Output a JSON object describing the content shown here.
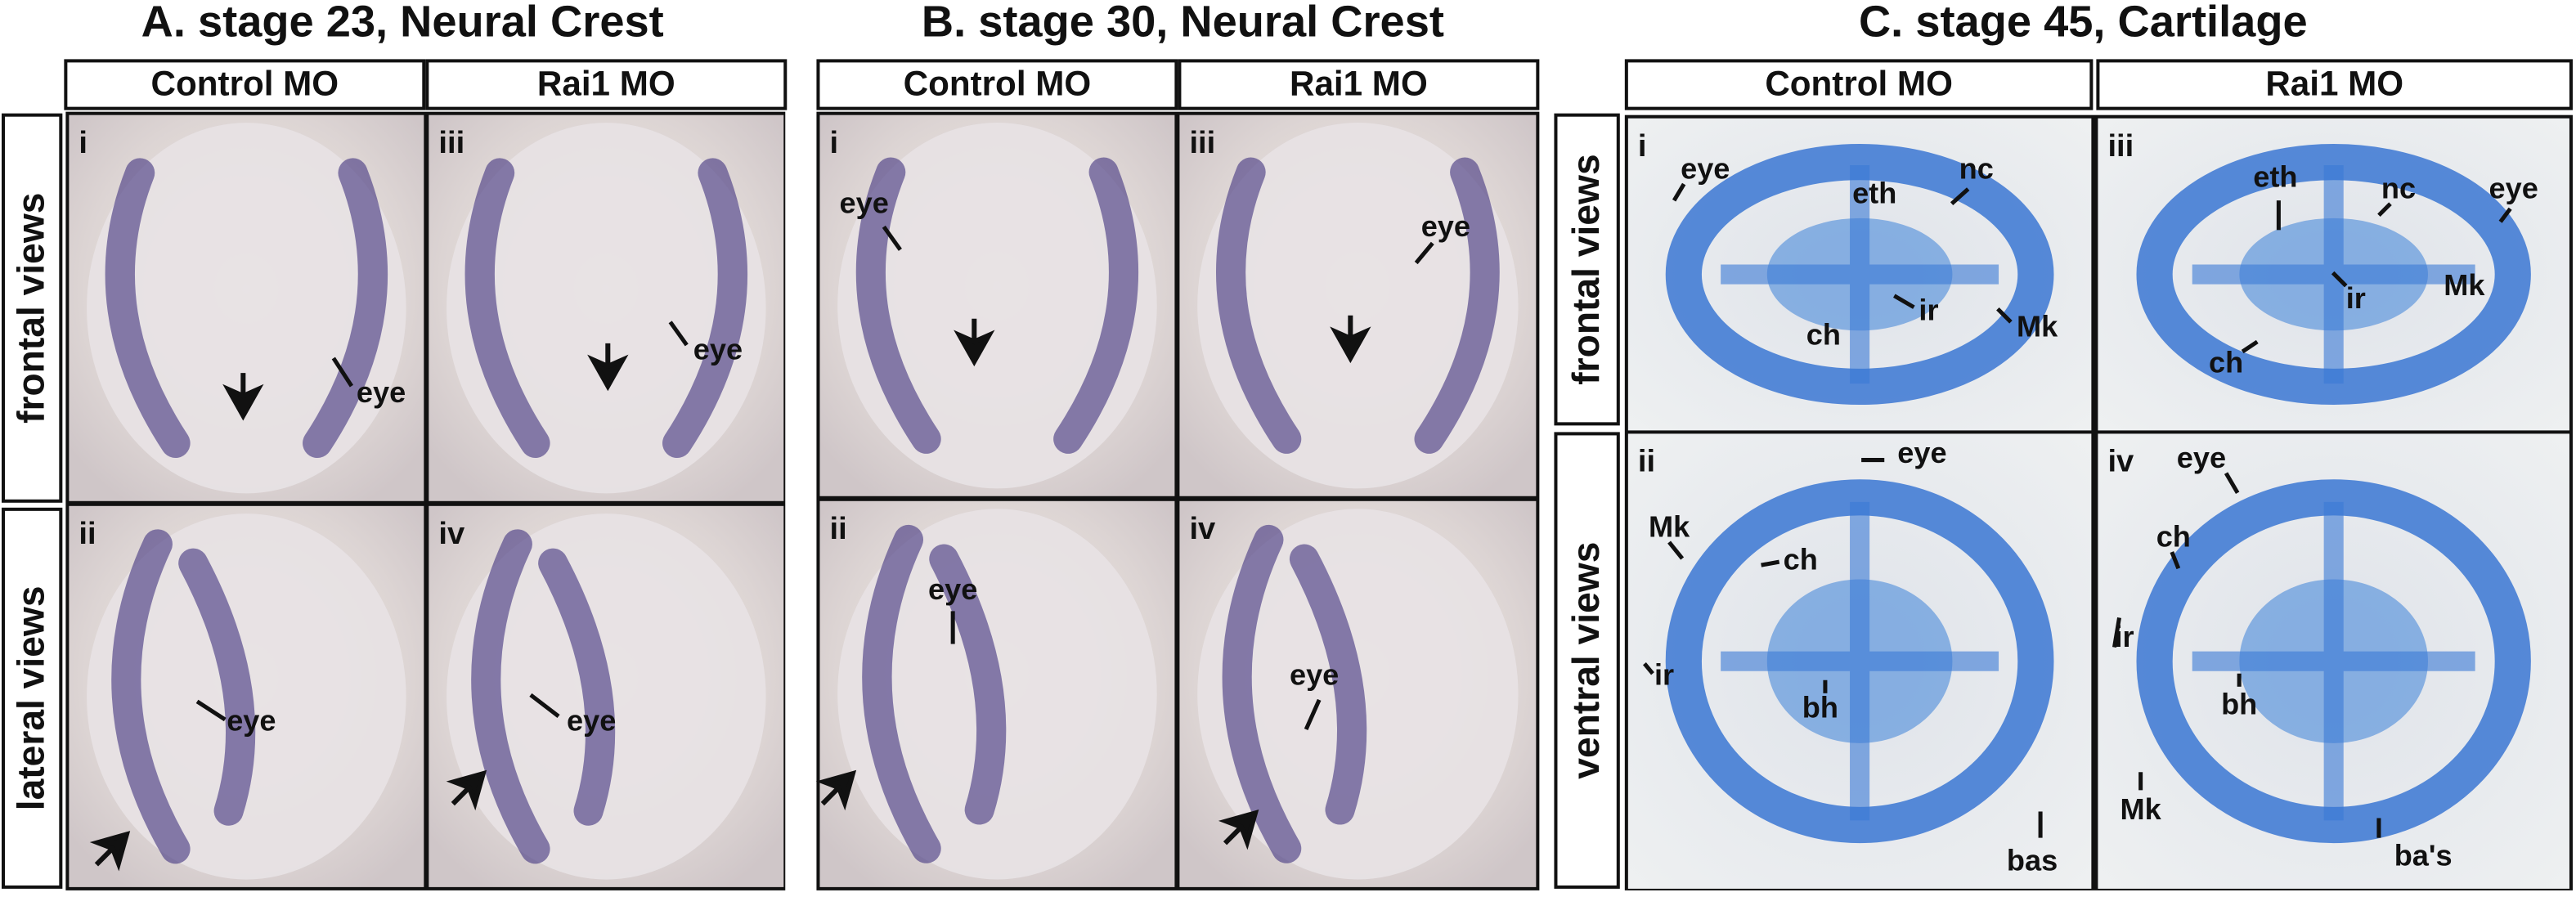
{
  "panels": [
    {
      "title": "A. stage 23, Neural Crest",
      "columns": [
        "Control MO",
        "Rai1 MO"
      ],
      "rows": [
        "frontal views",
        "lateral views"
      ],
      "subpanels": [
        {
          "numeral": "i",
          "labels": [
            "eye"
          ]
        },
        {
          "numeral": "iii",
          "labels": [
            "eye"
          ]
        },
        {
          "numeral": "ii",
          "labels": [
            "eye"
          ]
        },
        {
          "numeral": "iv",
          "labels": [
            "eye"
          ]
        }
      ]
    },
    {
      "title": "B. stage 30, Neural Crest",
      "columns": [
        "Control MO",
        "Rai1 MO"
      ],
      "subpanels": [
        {
          "numeral": "i",
          "labels": [
            "eye"
          ]
        },
        {
          "numeral": "iii",
          "labels": [
            "eye"
          ]
        },
        {
          "numeral": "ii",
          "labels": [
            "eye"
          ]
        },
        {
          "numeral": "iv",
          "labels": [
            "eye"
          ]
        }
      ]
    },
    {
      "title": "C. stage 45, Cartilage",
      "columns": [
        "Control MO",
        "Rai1 MO"
      ],
      "rows": [
        "frontal views",
        "ventral views"
      ],
      "subpanels": [
        {
          "numeral": "i",
          "labels": [
            "eye",
            "eth",
            "nc",
            "ch",
            "ir",
            "Mk"
          ]
        },
        {
          "numeral": "iii",
          "labels": [
            "eth",
            "nc",
            "eye",
            "ir",
            "Mk",
            "ch"
          ]
        },
        {
          "numeral": "ii",
          "labels": [
            "eye",
            "Mk",
            "ch",
            "ir",
            "bh",
            "bas"
          ]
        },
        {
          "numeral": "iv",
          "labels": [
            "eye",
            "ch",
            "ir",
            "bh",
            "Mk",
            "ba's"
          ]
        }
      ]
    }
  ]
}
